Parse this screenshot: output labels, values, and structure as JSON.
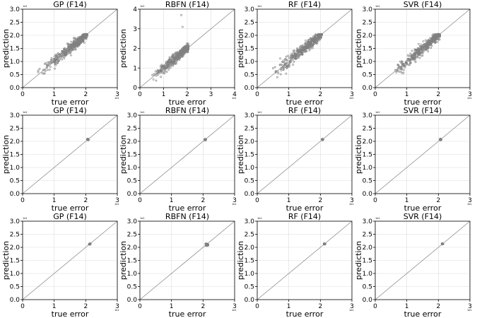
{
  "chart_data": [
    {
      "type": "scatter",
      "title": "GP (F14)",
      "xlabel": "true error",
      "ylabel": "prediction",
      "xlim": [
        0,
        3
      ],
      "ylim": [
        0,
        3
      ],
      "xticks": [
        "0",
        "1",
        "2",
        "3"
      ],
      "yticks": [
        "0.0",
        "0.5",
        "1.0",
        "1.5",
        "2.0",
        "2.5",
        "3.0"
      ],
      "offset_text": "1e1",
      "grid": true,
      "diagonal": true,
      "cluster": {
        "x_range": [
          0.4,
          2.05
        ],
        "y_range": [
          0.4,
          2.05
        ],
        "center": [
          1.75,
          1.75
        ],
        "spread": 0.08
      }
    },
    {
      "type": "scatter",
      "title": "RBFN (F14)",
      "xlabel": "true error",
      "ylabel": "prediction",
      "xlim": [
        0,
        4
      ],
      "ylim": [
        0,
        4
      ],
      "xticks": [
        "0",
        "1",
        "2",
        "3",
        "4"
      ],
      "yticks": [
        "0",
        "1",
        "2",
        "3",
        "4"
      ],
      "offset_text": "1e1",
      "grid": true,
      "diagonal": true,
      "cluster": {
        "x_range": [
          0.4,
          2.05
        ],
        "y_range": [
          0.3,
          3.7
        ],
        "center": [
          1.75,
          1.75
        ],
        "spread": 0.1
      }
    },
    {
      "type": "scatter",
      "title": "RF (F14)",
      "xlabel": "true error",
      "ylabel": "prediction",
      "xlim": [
        0,
        3
      ],
      "ylim": [
        0,
        3
      ],
      "xticks": [
        "0",
        "1",
        "2",
        "3"
      ],
      "yticks": [
        "0.0",
        "0.5",
        "1.0",
        "1.5",
        "2.0",
        "2.5",
        "3.0"
      ],
      "offset_text": "1e1",
      "grid": true,
      "diagonal": true,
      "cluster": {
        "x_range": [
          0.4,
          2.05
        ],
        "y_range": [
          0.4,
          2.05
        ],
        "center": [
          1.75,
          1.75
        ],
        "spread": 0.08
      }
    },
    {
      "type": "scatter",
      "title": "SVR (F14)",
      "xlabel": "true error",
      "ylabel": "prediction",
      "xlim": [
        0,
        3
      ],
      "ylim": [
        0,
        3
      ],
      "xticks": [
        "0",
        "1",
        "2",
        "3"
      ],
      "yticks": [
        "0.0",
        "0.5",
        "1.0",
        "1.5",
        "2.0",
        "2.5",
        "3.0"
      ],
      "offset_text": "1e1",
      "grid": true,
      "diagonal": true,
      "cluster": {
        "x_range": [
          0.4,
          2.05
        ],
        "y_range": [
          0.4,
          2.05
        ],
        "center": [
          1.75,
          1.75
        ],
        "spread": 0.08
      }
    },
    {
      "type": "scatter",
      "title": "GP (F14)",
      "xlabel": "true error",
      "ylabel": "prediction",
      "xlim": [
        0,
        3
      ],
      "ylim": [
        0,
        3
      ],
      "xticks": [
        "0",
        "1",
        "2",
        "3"
      ],
      "yticks": [
        "0.0",
        "0.5",
        "1.0",
        "1.5",
        "2.0",
        "2.5",
        "3.0"
      ],
      "offset_text": "1e1",
      "grid": true,
      "diagonal": true,
      "cluster": {
        "x_range": [
          2.04,
          2.1
        ],
        "y_range": [
          2.03,
          2.1
        ],
        "center": [
          2.07,
          2.07
        ],
        "spread": 0.015
      }
    },
    {
      "type": "scatter",
      "title": "RBFN (F14)",
      "xlabel": "true error",
      "ylabel": "prediction",
      "xlim": [
        0,
        3
      ],
      "ylim": [
        0,
        3
      ],
      "xticks": [
        "0",
        "1",
        "2",
        "3"
      ],
      "yticks": [
        "0.0",
        "0.5",
        "1.0",
        "1.5",
        "2.0",
        "2.5",
        "3.0"
      ],
      "offset_text": "1e1",
      "grid": true,
      "diagonal": true,
      "cluster": {
        "x_range": [
          2.04,
          2.1
        ],
        "y_range": [
          2.02,
          2.1
        ],
        "center": [
          2.07,
          2.07
        ],
        "spread": 0.015
      }
    },
    {
      "type": "scatter",
      "title": "RF (F14)",
      "xlabel": "true error",
      "ylabel": "prediction",
      "xlim": [
        0,
        3
      ],
      "ylim": [
        0,
        3
      ],
      "xticks": [
        "0",
        "1",
        "2",
        "3"
      ],
      "yticks": [
        "0.0",
        "0.5",
        "1.0",
        "1.5",
        "2.0",
        "2.5",
        "3.0"
      ],
      "offset_text": "1e1",
      "grid": true,
      "diagonal": true,
      "cluster": {
        "x_range": [
          2.04,
          2.1
        ],
        "y_range": [
          2.03,
          2.1
        ],
        "center": [
          2.07,
          2.07
        ],
        "spread": 0.015
      }
    },
    {
      "type": "scatter",
      "title": "SVR (F14)",
      "xlabel": "true error",
      "ylabel": "prediction",
      "xlim": [
        0,
        3
      ],
      "ylim": [
        0,
        3
      ],
      "xticks": [
        "0",
        "1",
        "2",
        "3"
      ],
      "yticks": [
        "0.0",
        "0.5",
        "1.0",
        "1.5",
        "2.0",
        "2.5",
        "3.0"
      ],
      "offset_text": "1e1",
      "grid": true,
      "diagonal": true,
      "cluster": {
        "x_range": [
          2.04,
          2.1
        ],
        "y_range": [
          2.03,
          2.1
        ],
        "center": [
          2.07,
          2.07
        ],
        "spread": 0.015
      }
    },
    {
      "type": "scatter",
      "title": "GP (F14)",
      "xlabel": "true error",
      "ylabel": "prediction",
      "xlim": [
        0,
        3
      ],
      "ylim": [
        0,
        3
      ],
      "xticks": [
        "0",
        "1",
        "2",
        "3"
      ],
      "yticks": [
        "0.0",
        "0.5",
        "1.0",
        "1.5",
        "2.0",
        "2.5",
        "3.0"
      ],
      "offset_text": "1e1",
      "grid": true,
      "diagonal": true,
      "cluster": {
        "x_range": [
          2.1,
          2.16
        ],
        "y_range": [
          2.1,
          2.16
        ],
        "center": [
          2.13,
          2.13
        ],
        "spread": 0.012
      }
    },
    {
      "type": "scatter",
      "title": "RBFN (F14)",
      "xlabel": "true error",
      "ylabel": "prediction",
      "xlim": [
        0,
        3
      ],
      "ylim": [
        0,
        3
      ],
      "xticks": [
        "0",
        "1",
        "2",
        "3"
      ],
      "yticks": [
        "0.0",
        "0.5",
        "1.0",
        "1.5",
        "2.0",
        "2.5",
        "3.0"
      ],
      "offset_text": "1e1",
      "grid": true,
      "diagonal": true,
      "cluster": {
        "x_range": [
          2.08,
          2.16
        ],
        "y_range": [
          1.95,
          2.2
        ],
        "center": [
          2.12,
          2.1
        ],
        "spread": 0.03
      }
    },
    {
      "type": "scatter",
      "title": "RF (F14)",
      "xlabel": "true error",
      "ylabel": "prediction",
      "xlim": [
        0,
        3
      ],
      "ylim": [
        0,
        3
      ],
      "xticks": [
        "0",
        "1",
        "2",
        "3"
      ],
      "yticks": [
        "0.0",
        "0.5",
        "1.0",
        "1.5",
        "2.0",
        "2.5",
        "3.0"
      ],
      "offset_text": "1e1",
      "grid": true,
      "diagonal": true,
      "cluster": {
        "x_range": [
          2.1,
          2.16
        ],
        "y_range": [
          2.1,
          2.16
        ],
        "center": [
          2.13,
          2.13
        ],
        "spread": 0.012
      }
    },
    {
      "type": "scatter",
      "title": "SVR (F14)",
      "xlabel": "true error",
      "ylabel": "prediction",
      "xlim": [
        0,
        3
      ],
      "ylim": [
        0,
        3
      ],
      "xticks": [
        "0",
        "1",
        "2",
        "3"
      ],
      "yticks": [
        "0.0",
        "0.5",
        "1.0",
        "1.5",
        "2.0",
        "2.5",
        "3.0"
      ],
      "offset_text": "1e1",
      "grid": true,
      "diagonal": true,
      "cluster": {
        "x_range": [
          2.1,
          2.16
        ],
        "y_range": [
          2.1,
          2.16
        ],
        "center": [
          2.13,
          2.13
        ],
        "spread": 0.012
      }
    }
  ],
  "colors": {
    "points": "#808080",
    "diagonal": "#808080",
    "grid": "#dddddd",
    "axis": "#000000"
  }
}
